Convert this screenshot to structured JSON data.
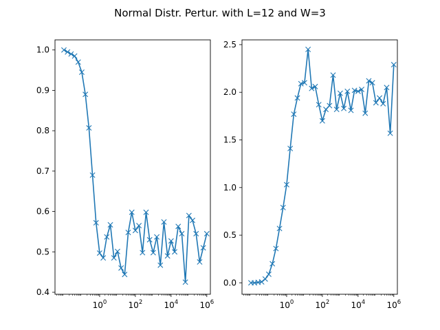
{
  "figure": {
    "title": "Normal Distr. Pertur. with L=12 and W=3"
  },
  "colors": {
    "series": "#1f77b4",
    "axes": "#000000",
    "background": "#ffffff"
  },
  "chart_data": [
    {
      "type": "line",
      "marker": "x",
      "xscale": "log",
      "xlim_exponents": [
        -2.5,
        6.2
      ],
      "xticks": [
        {
          "base": "10",
          "exp": "0",
          "value": 1
        },
        {
          "base": "10",
          "exp": "2",
          "value": 100
        },
        {
          "base": "10",
          "exp": "4",
          "value": 10000
        },
        {
          "base": "10",
          "exp": "6",
          "value": 1000000
        }
      ],
      "ylim": [
        0.395,
        1.025
      ],
      "yticks": [
        "0.4",
        "0.5",
        "0.6",
        "0.7",
        "0.8",
        "0.9",
        "1.0"
      ],
      "ytick_values": [
        0.4,
        0.5,
        0.6,
        0.7,
        0.8,
        0.9,
        1.0
      ],
      "grid": false,
      "series": [
        {
          "x_log10": [
            -2.0,
            -1.8,
            -1.6,
            -1.4,
            -1.2,
            -1.0,
            -0.8,
            -0.6,
            -0.4,
            -0.2,
            0.0,
            0.2,
            0.4,
            0.6,
            0.8,
            1.0,
            1.2,
            1.4,
            1.6,
            1.8,
            2.0,
            2.2,
            2.4,
            2.6,
            2.8,
            3.0,
            3.2,
            3.4,
            3.6,
            3.8,
            4.0,
            4.2,
            4.4,
            4.6,
            4.8,
            5.0,
            5.2,
            5.4,
            5.6,
            5.8,
            6.0
          ],
          "y": [
            1.0,
            0.995,
            0.99,
            0.985,
            0.97,
            0.945,
            0.89,
            0.807,
            0.69,
            0.572,
            0.497,
            0.485,
            0.537,
            0.567,
            0.485,
            0.501,
            0.46,
            0.444,
            0.548,
            0.598,
            0.553,
            0.565,
            0.498,
            0.598,
            0.53,
            0.498,
            0.537,
            0.467,
            0.574,
            0.49,
            0.527,
            0.5,
            0.563,
            0.545,
            0.425,
            0.59,
            0.578,
            0.545,
            0.475,
            0.51,
            0.545
          ]
        }
      ]
    },
    {
      "type": "line",
      "marker": "x",
      "xscale": "log",
      "xlim_exponents": [
        -2.5,
        6.2
      ],
      "xticks": [
        {
          "base": "10",
          "exp": "0",
          "value": 1
        },
        {
          "base": "10",
          "exp": "2",
          "value": 100
        },
        {
          "base": "10",
          "exp": "4",
          "value": 10000
        },
        {
          "base": "10",
          "exp": "6",
          "value": 1000000
        }
      ],
      "ylim": [
        -0.12,
        2.55
      ],
      "yticks": [
        "0.0",
        "0.5",
        "1.0",
        "1.5",
        "2.0",
        "2.5"
      ],
      "ytick_values": [
        0.0,
        0.5,
        1.0,
        1.5,
        2.0,
        2.5
      ],
      "grid": false,
      "series": [
        {
          "x_log10": [
            -2.0,
            -1.8,
            -1.6,
            -1.4,
            -1.2,
            -1.0,
            -0.8,
            -0.6,
            -0.4,
            -0.2,
            0.0,
            0.2,
            0.4,
            0.6,
            0.8,
            1.0,
            1.2,
            1.4,
            1.6,
            1.8,
            2.0,
            2.2,
            2.4,
            2.6,
            2.8,
            3.0,
            3.2,
            3.4,
            3.6,
            3.8,
            4.0,
            4.2,
            4.4,
            4.6,
            4.8,
            5.0,
            5.2,
            5.4,
            5.6,
            5.8,
            6.0
          ],
          "y": [
            0.0,
            0.0,
            0.005,
            0.01,
            0.04,
            0.09,
            0.2,
            0.36,
            0.57,
            0.79,
            1.03,
            1.41,
            1.77,
            1.94,
            2.09,
            2.1,
            2.45,
            2.04,
            2.06,
            1.87,
            1.7,
            1.82,
            1.86,
            2.18,
            1.82,
            1.99,
            1.83,
            2.01,
            1.81,
            2.02,
            2.01,
            2.03,
            1.78,
            2.12,
            2.1,
            1.89,
            1.94,
            1.88,
            2.05,
            1.57,
            2.29
          ]
        }
      ]
    }
  ]
}
